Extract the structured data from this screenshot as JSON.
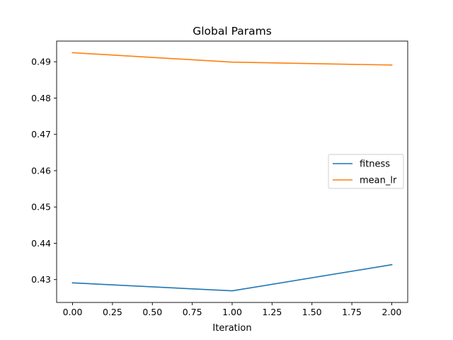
{
  "chart_data": {
    "type": "line",
    "title": "Global Params",
    "xlabel": "Iteration",
    "ylabel": "",
    "x": [
      0,
      1,
      2
    ],
    "xlim": [
      -0.1,
      2.1
    ],
    "ylim": [
      0.4237,
      0.4957
    ],
    "xticks": [
      0.0,
      0.25,
      0.5,
      0.75,
      1.0,
      1.25,
      1.5,
      1.75,
      2.0
    ],
    "xtick_labels": [
      "0.00",
      "0.25",
      "0.50",
      "0.75",
      "1.00",
      "1.25",
      "1.50",
      "1.75",
      "2.00"
    ],
    "yticks": [
      0.43,
      0.44,
      0.45,
      0.46,
      0.47,
      0.48,
      0.49
    ],
    "ytick_labels": [
      "0.43",
      "0.44",
      "0.45",
      "0.46",
      "0.47",
      "0.48",
      "0.49"
    ],
    "grid": false,
    "legend_position": "center-right",
    "series": [
      {
        "name": "fitness",
        "color": "#1f77b4",
        "values": [
          0.4291,
          0.4269,
          0.4341
        ]
      },
      {
        "name": "mean_lr",
        "color": "#ff7f0e",
        "values": [
          0.4925,
          0.4899,
          0.4891
        ]
      }
    ]
  }
}
